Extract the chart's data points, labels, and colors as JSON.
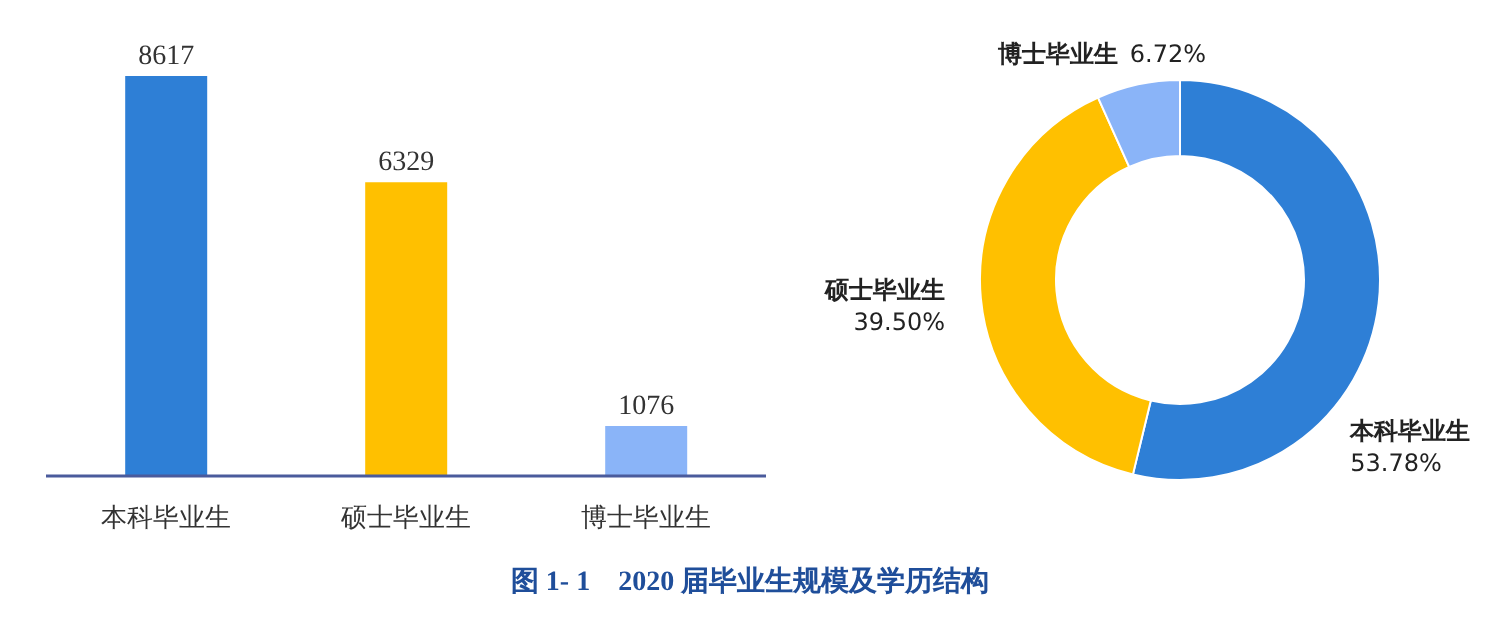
{
  "chart_data": [
    {
      "type": "bar",
      "categories": [
        "本科毕业生",
        "硕士毕业生",
        "博士毕业生"
      ],
      "values": [
        8617,
        6329,
        1076
      ],
      "colors": [
        "#2e7fd6",
        "#ffc000",
        "#8ab4f8"
      ],
      "data_labels": true,
      "annotations": [
        "图 1- 1　2020 届毕业生规模及学历结构"
      ]
    },
    {
      "type": "donut",
      "categories": [
        "本科毕业生",
        "硕士毕业生",
        "博士毕业生"
      ],
      "values": [
        53.78,
        39.5,
        6.72
      ],
      "value_labels": [
        "53.78%",
        "39.50%",
        "6.72%"
      ],
      "colors": [
        "#2e7fd6",
        "#ffc000",
        "#8ab4f8"
      ]
    }
  ]
}
